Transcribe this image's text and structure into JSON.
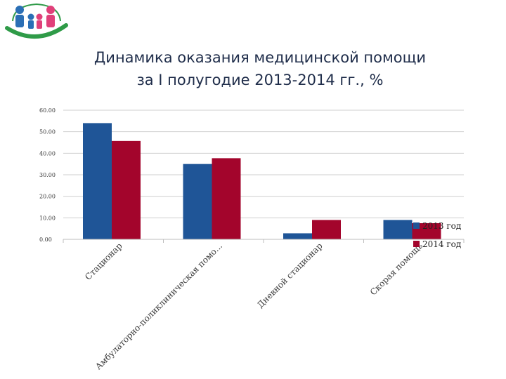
{
  "title": {
    "line1": "Динамика оказания медицинской помощи",
    "line2": "за I полугодие 2013-2014 гг., %"
  },
  "logo": {
    "icon": "family-logo-icon"
  },
  "colors": {
    "series_2013": "#1f5597",
    "series_2014": "#a3052c"
  },
  "chart_data": {
    "type": "bar",
    "title": "Динамика оказания медицинской помощи за I полугодие 2013-2014 гг., %",
    "categories": [
      "Стационар",
      "Амбулаторно-поликлиническая помо...",
      "Дневной стационар",
      "Скорая помощь"
    ],
    "series": [
      {
        "name": "2013 год",
        "values": [
          54.0,
          35.0,
          2.8,
          9.0
        ]
      },
      {
        "name": "2014 год",
        "values": [
          45.7,
          37.7,
          9.0,
          7.5
        ]
      }
    ],
    "yticks": [
      "0.00",
      "10.00",
      "20.00",
      "30.00",
      "40.00",
      "50.00",
      "60.00"
    ],
    "ylim": [
      0,
      60
    ],
    "grid": true,
    "legend": "right",
    "xlabel": "",
    "ylabel": ""
  }
}
